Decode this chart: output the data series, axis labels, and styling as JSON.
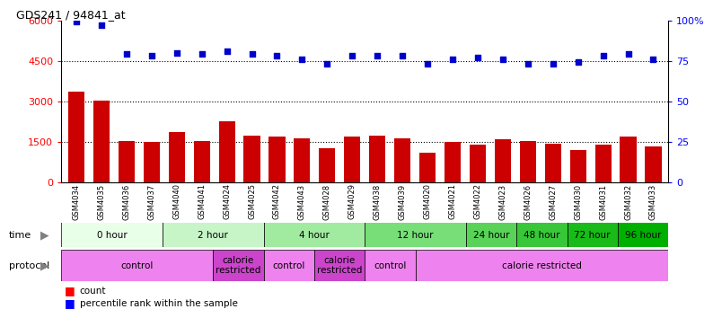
{
  "title": "GDS241 / 94841_at",
  "samples": [
    "GSM4034",
    "GSM4035",
    "GSM4036",
    "GSM4037",
    "GSM4040",
    "GSM4041",
    "GSM4024",
    "GSM4025",
    "GSM4042",
    "GSM4043",
    "GSM4028",
    "GSM4029",
    "GSM4038",
    "GSM4039",
    "GSM4020",
    "GSM4021",
    "GSM4022",
    "GSM4023",
    "GSM4026",
    "GSM4027",
    "GSM4030",
    "GSM4031",
    "GSM4032",
    "GSM4033"
  ],
  "counts": [
    3350,
    3020,
    1530,
    1490,
    1840,
    1520,
    2250,
    1710,
    1700,
    1620,
    1240,
    1680,
    1720,
    1610,
    1100,
    1500,
    1380,
    1590,
    1530,
    1430,
    1200,
    1390,
    1700,
    1310
  ],
  "percentiles": [
    99,
    97,
    79,
    78,
    80,
    79,
    81,
    79,
    78,
    76,
    73,
    78,
    78,
    78,
    73,
    76,
    77,
    76,
    73,
    73,
    74,
    78,
    79,
    76
  ],
  "time_groups": [
    {
      "label": "0 hour",
      "start": 0,
      "end": 4,
      "color": "#e8ffe8"
    },
    {
      "label": "2 hour",
      "start": 4,
      "end": 8,
      "color": "#c8f5c8"
    },
    {
      "label": "4 hour",
      "start": 8,
      "end": 12,
      "color": "#a0eba0"
    },
    {
      "label": "12 hour",
      "start": 12,
      "end": 16,
      "color": "#78df78"
    },
    {
      "label": "24 hour",
      "start": 16,
      "end": 18,
      "color": "#58d358"
    },
    {
      "label": "48 hour",
      "start": 18,
      "end": 20,
      "color": "#38c738"
    },
    {
      "label": "72 hour",
      "start": 20,
      "end": 22,
      "color": "#18bb18"
    },
    {
      "label": "96 hour",
      "start": 22,
      "end": 24,
      "color": "#00b000"
    }
  ],
  "protocol_groups": [
    {
      "label": "control",
      "start": 0,
      "end": 6,
      "color": "#ee82ee"
    },
    {
      "label": "calorie\nrestricted",
      "start": 6,
      "end": 8,
      "color": "#cc44cc"
    },
    {
      "label": "control",
      "start": 8,
      "end": 10,
      "color": "#ee82ee"
    },
    {
      "label": "calorie\nrestricted",
      "start": 10,
      "end": 12,
      "color": "#cc44cc"
    },
    {
      "label": "control",
      "start": 12,
      "end": 14,
      "color": "#ee82ee"
    },
    {
      "label": "calorie restricted",
      "start": 14,
      "end": 24,
      "color": "#ee82ee"
    }
  ],
  "bar_color": "#cc0000",
  "dot_color": "#0000cc",
  "left_ylim": [
    0,
    6000
  ],
  "left_yticks": [
    0,
    1500,
    3000,
    4500,
    6000
  ],
  "right_ylim": [
    0,
    100
  ],
  "right_yticks": [
    0,
    25,
    50,
    75,
    100
  ],
  "grid_values": [
    1500,
    3000,
    4500
  ],
  "background_color": "#ffffff"
}
